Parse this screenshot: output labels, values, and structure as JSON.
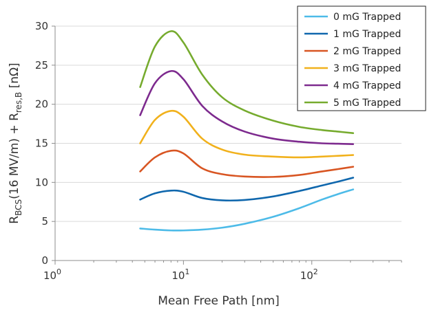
{
  "chart_data": {
    "type": "line",
    "x_scale": "log",
    "xlim": [
      1,
      500
    ],
    "ylim": [
      0,
      30
    ],
    "xlabel": "Mean Free Path [nm]",
    "ylabel": "R_BCS(16 MV/m) + R_res,B [nΩ]",
    "grid": "horizontal",
    "legend_position": "top-right",
    "x_ticks": [
      1,
      10,
      100
    ],
    "x_tick_labels": [
      {
        "base": "10",
        "exp": "0"
      },
      {
        "base": "10",
        "exp": "1"
      },
      {
        "base": "10",
        "exp": "2"
      }
    ],
    "y_ticks": [
      0,
      5,
      10,
      15,
      20,
      25,
      30
    ],
    "series": [
      {
        "name": "0 mG Trapped",
        "color": "#4dbbe8",
        "x": [
          4.6,
          6,
          8,
          10,
          14,
          20,
          30,
          50,
          80,
          120,
          160,
          210
        ],
        "y": [
          4.1,
          3.95,
          3.85,
          3.85,
          3.95,
          4.2,
          4.7,
          5.6,
          6.7,
          7.8,
          8.5,
          9.1
        ]
      },
      {
        "name": "1 mG Trapped",
        "color": "#0f67ad",
        "x": [
          4.6,
          6,
          8,
          10,
          14,
          20,
          30,
          50,
          80,
          120,
          160,
          210
        ],
        "y": [
          7.8,
          8.6,
          8.95,
          8.8,
          8.0,
          7.7,
          7.75,
          8.2,
          8.9,
          9.6,
          10.1,
          10.6
        ]
      },
      {
        "name": "2 mG Trapped",
        "color": "#d85522",
        "x": [
          4.6,
          6,
          8,
          10,
          14,
          20,
          30,
          50,
          80,
          120,
          160,
          210
        ],
        "y": [
          11.4,
          13.2,
          14.05,
          13.7,
          11.8,
          11.05,
          10.75,
          10.7,
          10.95,
          11.4,
          11.7,
          12.0
        ]
      },
      {
        "name": "3 mG Trapped",
        "color": "#f1b11c",
        "x": [
          4.6,
          6,
          8,
          10,
          14,
          20,
          30,
          50,
          80,
          120,
          160,
          210
        ],
        "y": [
          15.0,
          18.0,
          19.15,
          18.4,
          15.6,
          14.2,
          13.55,
          13.3,
          13.2,
          13.3,
          13.4,
          13.5
        ]
      },
      {
        "name": "4 mG Trapped",
        "color": "#7d2a8e",
        "x": [
          4.6,
          6,
          8,
          10,
          14,
          20,
          30,
          50,
          80,
          120,
          160,
          210
        ],
        "y": [
          18.6,
          22.7,
          24.25,
          23.2,
          19.8,
          17.8,
          16.5,
          15.6,
          15.2,
          15.0,
          14.95,
          14.9
        ]
      },
      {
        "name": "5 mG Trapped",
        "color": "#76ab2e",
        "x": [
          4.6,
          6,
          8,
          10,
          14,
          20,
          30,
          50,
          80,
          120,
          160,
          210
        ],
        "y": [
          22.2,
          27.4,
          29.35,
          27.9,
          23.8,
          20.9,
          19.2,
          17.9,
          17.1,
          16.7,
          16.5,
          16.3
        ]
      }
    ]
  }
}
